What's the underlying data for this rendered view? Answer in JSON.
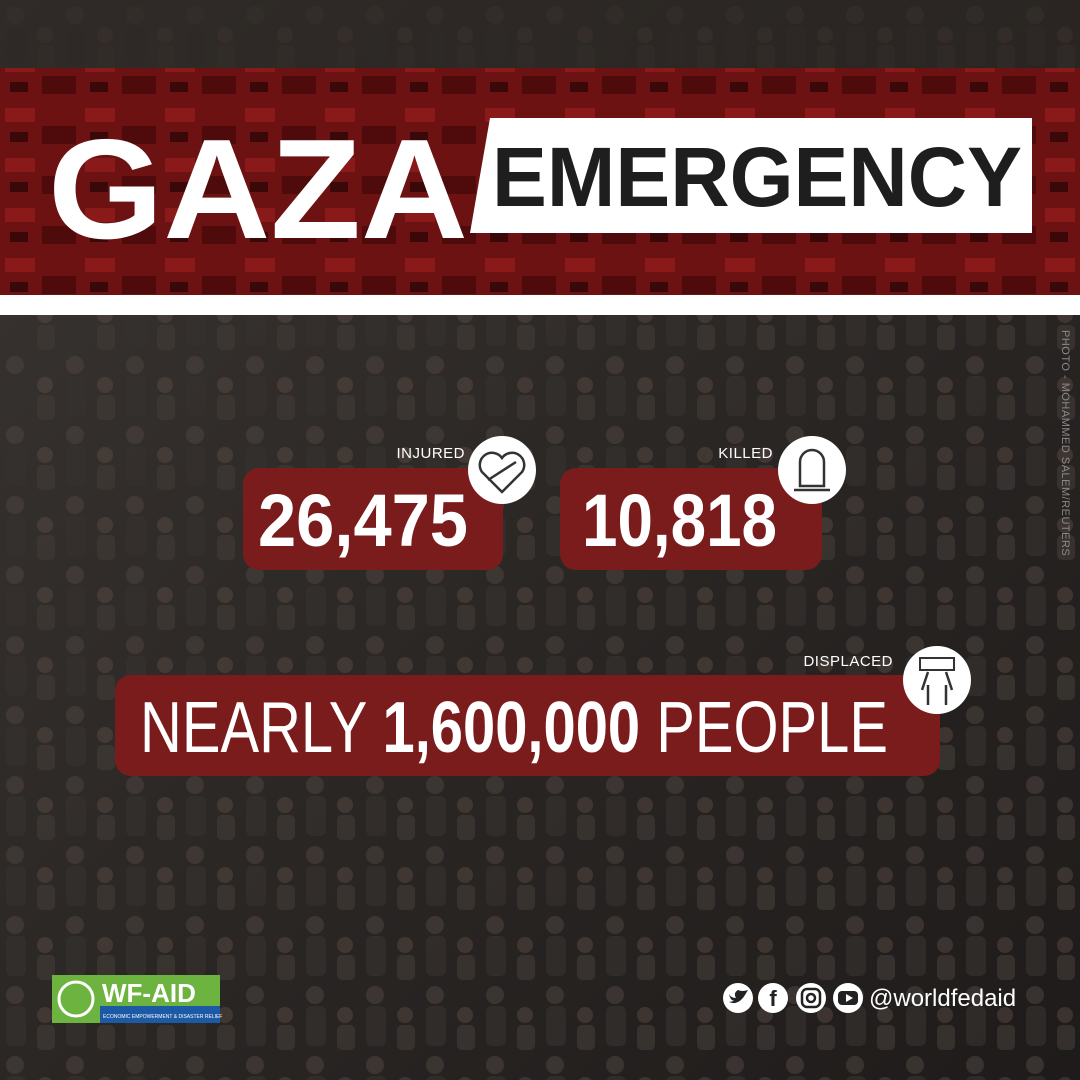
{
  "header": {
    "title": "GAZA",
    "subtitle": "EMERGENCY"
  },
  "stats": [
    {
      "label": "INJURED",
      "value": "26,475"
    },
    {
      "label": "KILLED",
      "value": "10,818"
    }
  ],
  "displaced": {
    "label": "DISPLACED",
    "prefix": "NEARLY",
    "value": "1,600,000",
    "suffix": "PEOPLE"
  },
  "photo_credit": "PHOTO - MOHAMMED SALEM/REUTERS",
  "footer": {
    "logo": "WF-AID",
    "tagline": "ECONOMIC EMPOWERMENT & DISASTER RELIEF",
    "handle": "@worldfedaid"
  }
}
